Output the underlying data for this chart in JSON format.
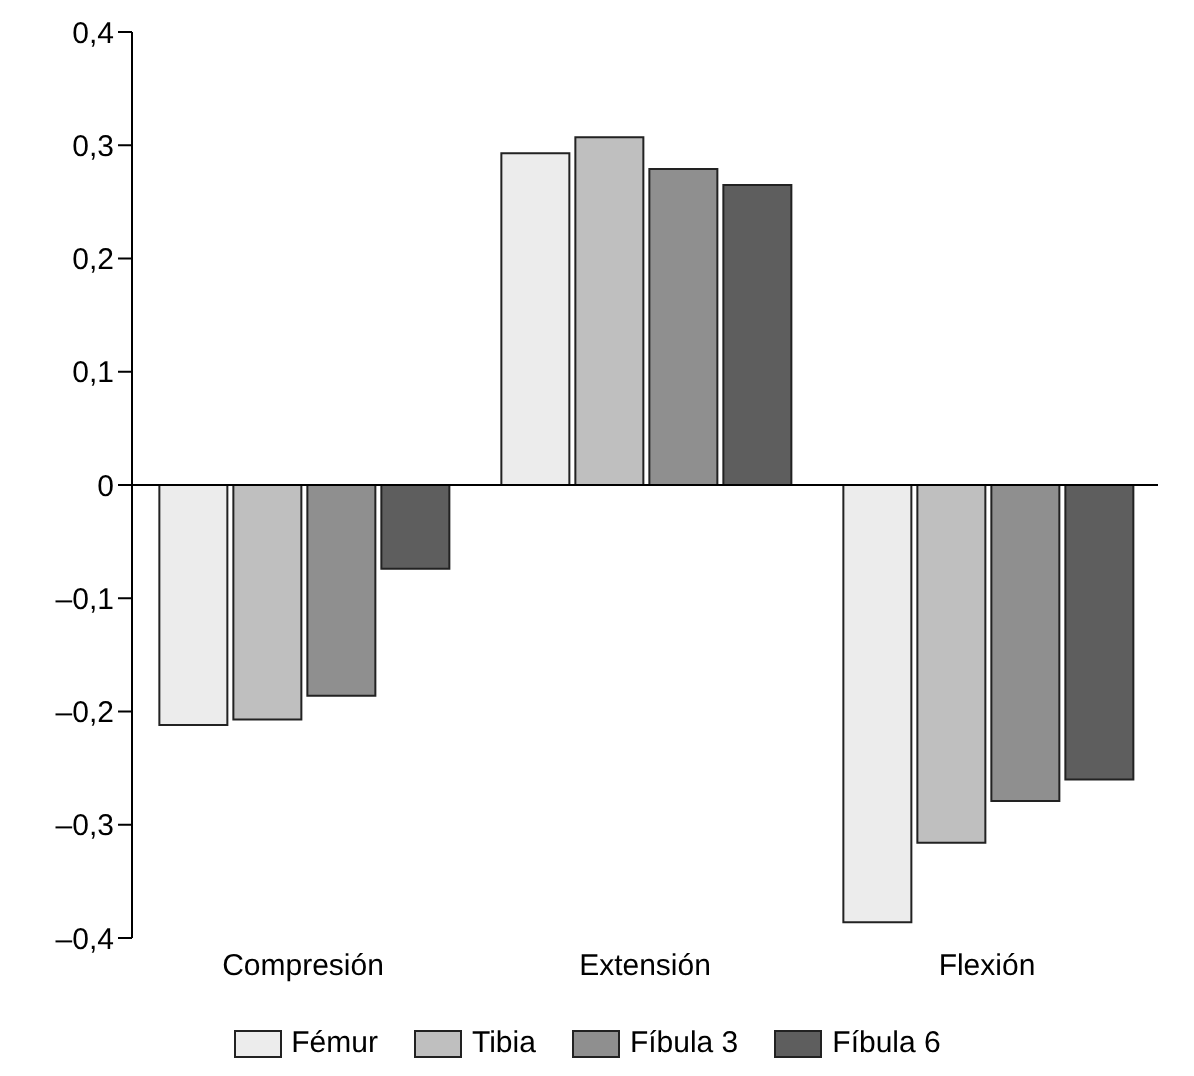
{
  "chart_data": {
    "type": "bar",
    "categories": [
      "Compresión",
      "Extensión",
      "Flexión"
    ],
    "series": [
      {
        "name": "Fémur",
        "color": "#ececec",
        "values": [
          -0.212,
          0.293,
          -0.386
        ]
      },
      {
        "name": "Tibia",
        "color": "#bfbfbf",
        "values": [
          -0.207,
          0.307,
          -0.316
        ]
      },
      {
        "name": "Fíbula 3",
        "color": "#8f8f8f",
        "values": [
          -0.186,
          0.279,
          -0.279
        ]
      },
      {
        "name": "Fíbula 6",
        "color": "#5e5e5e",
        "values": [
          -0.074,
          0.265,
          -0.26
        ]
      }
    ],
    "ylim": [
      -0.4,
      0.4
    ],
    "yticks": [
      {
        "value": -0.4,
        "label": "–0,4"
      },
      {
        "value": -0.3,
        "label": "–0,3"
      },
      {
        "value": -0.2,
        "label": "–0,2"
      },
      {
        "value": -0.1,
        "label": "–0,1"
      },
      {
        "value": 0,
        "label": "0"
      },
      {
        "value": 0.1,
        "label": "0,1"
      },
      {
        "value": 0.2,
        "label": "0,2"
      },
      {
        "value": 0.3,
        "label": "0,3"
      },
      {
        "value": 0.4,
        "label": "0,4"
      }
    ],
    "legend": "bottom"
  }
}
